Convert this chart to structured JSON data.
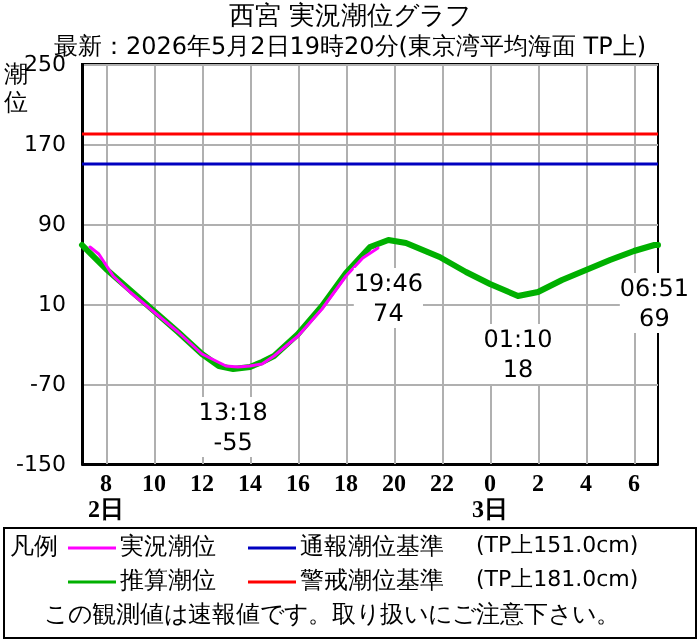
{
  "chart_data": {
    "type": "line",
    "title": "西宮 実況潮位グラフ",
    "subtitle": "最新：2026年5月2日19時20分(東京湾平均海面 TP上)",
    "ylabel": "潮位",
    "legend_title": "凡例",
    "xlim": [
      "2026-05-02T07:00",
      "2026-05-03T07:00"
    ],
    "xticks": [
      {
        "value": "2026-05-02T08:00",
        "label": "8\n2日"
      },
      {
        "value": "2026-05-02T10:00",
        "label": "10"
      },
      {
        "value": "2026-05-02T12:00",
        "label": "12"
      },
      {
        "value": "2026-05-02T14:00",
        "label": "14"
      },
      {
        "value": "2026-05-02T16:00",
        "label": "16"
      },
      {
        "value": "2026-05-02T18:00",
        "label": "18"
      },
      {
        "value": "2026-05-02T20:00",
        "label": "20"
      },
      {
        "value": "2026-05-02T22:00",
        "label": "22"
      },
      {
        "value": "2026-05-03T00:00",
        "label": "0\n3日"
      },
      {
        "value": "2026-05-03T02:00",
        "label": "2"
      },
      {
        "value": "2026-05-03T04:00",
        "label": "4"
      },
      {
        "value": "2026-05-03T06:00",
        "label": "6"
      }
    ],
    "ylim": [
      -150,
      250
    ],
    "yticks": [
      -150,
      -70,
      10,
      90,
      170,
      250
    ],
    "grid": true,
    "legend": "bottom",
    "marker": "none",
    "line_style": "solid",
    "series": [
      {
        "name": "実況潮位",
        "color": "#ff00ff",
        "x": [
          "2026-05-02T07:20",
          "2026-05-02T07:42",
          "2026-05-02T08:18",
          "2026-05-02T09:00",
          "2026-05-02T10:00",
          "2026-05-02T11:00",
          "2026-05-02T12:00",
          "2026-05-02T13:00",
          "2026-05-02T13:30",
          "2026-05-02T14:00",
          "2026-05-02T14:30",
          "2026-05-02T15:00",
          "2026-05-02T16:00",
          "2026-05-02T17:00",
          "2026-05-02T18:00",
          "2026-05-02T18:42",
          "2026-05-02T19:20"
        ],
        "values": [
          67,
          60,
          38,
          22,
          2,
          -18,
          -40,
          -52,
          -53,
          -52,
          -50,
          -42,
          -22,
          5,
          38,
          56,
          66
        ]
      },
      {
        "name": "推算潮位",
        "color": "#00b000",
        "x": [
          "2026-05-02T07:00",
          "2026-05-02T08:00",
          "2026-05-02T09:00",
          "2026-05-02T10:00",
          "2026-05-02T11:00",
          "2026-05-02T12:00",
          "2026-05-02T12:42",
          "2026-05-02T13:18",
          "2026-05-02T14:00",
          "2026-05-02T14:30",
          "2026-05-02T15:00",
          "2026-05-02T16:00",
          "2026-05-02T17:00",
          "2026-05-02T18:00",
          "2026-05-02T19:00",
          "2026-05-02T19:46",
          "2026-05-02T20:30",
          "2026-05-02T21:54",
          "2026-05-02T23:00",
          "2026-05-03T00:00",
          "2026-05-03T01:10",
          "2026-05-03T02:00",
          "2026-05-03T03:00",
          "2026-05-03T04:00",
          "2026-05-03T05:00",
          "2026-05-03T06:00",
          "2026-05-03T06:51",
          "2026-05-03T07:00"
        ],
        "values": [
          69,
          45,
          24,
          3,
          -18,
          -40,
          -52,
          -55,
          -53,
          -48,
          -42,
          -20,
          8,
          41,
          67,
          74,
          71,
          57,
          42,
          30,
          18,
          22,
          34,
          44,
          54,
          63,
          69,
          69
        ]
      }
    ],
    "ref_lines": [
      {
        "axis": "y",
        "value": 151,
        "label": "通報潮位基準",
        "color": "#0000c0"
      },
      {
        "axis": "y",
        "value": 181,
        "label": "警戒潮位基準",
        "color": "#ff0000"
      }
    ],
    "annotations": [
      {
        "text": "13:18\n-55",
        "x": "2026-05-02T13:18",
        "y": -55
      },
      {
        "text": "19:46\n74",
        "x": "2026-05-02T19:46",
        "y": 74
      },
      {
        "text": "01:10\n18",
        "x": "2026-05-03T01:10",
        "y": 18
      },
      {
        "text": "06:51\n69",
        "x": "2026-05-03T06:51",
        "y": 69
      },
      "(TP上151.0cm)",
      "(TP上181.0cm)",
      "この観測値は速報値です。取り扱いにご注意下さい。"
    ]
  }
}
